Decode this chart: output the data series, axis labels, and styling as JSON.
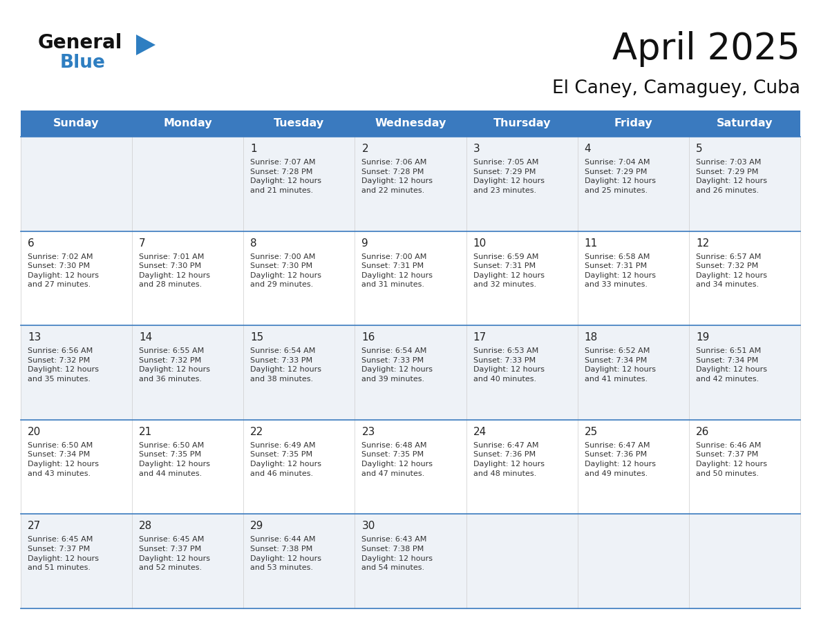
{
  "title": "April 2025",
  "subtitle": "El Caney, Camaguey, Cuba",
  "header_color": "#3a7abf",
  "header_text_color": "#ffffff",
  "row_bg_even": "#eef2f7",
  "row_bg_odd": "#ffffff",
  "separator_color": "#3a7abf",
  "cell_line_color": "#cccccc",
  "text_color": "#222222",
  "info_text_color": "#333333",
  "days_of_week": [
    "Sunday",
    "Monday",
    "Tuesday",
    "Wednesday",
    "Thursday",
    "Friday",
    "Saturday"
  ],
  "weeks": [
    [
      {
        "day": "",
        "info": ""
      },
      {
        "day": "",
        "info": ""
      },
      {
        "day": "1",
        "info": "Sunrise: 7:07 AM\nSunset: 7:28 PM\nDaylight: 12 hours\nand 21 minutes."
      },
      {
        "day": "2",
        "info": "Sunrise: 7:06 AM\nSunset: 7:28 PM\nDaylight: 12 hours\nand 22 minutes."
      },
      {
        "day": "3",
        "info": "Sunrise: 7:05 AM\nSunset: 7:29 PM\nDaylight: 12 hours\nand 23 minutes."
      },
      {
        "day": "4",
        "info": "Sunrise: 7:04 AM\nSunset: 7:29 PM\nDaylight: 12 hours\nand 25 minutes."
      },
      {
        "day": "5",
        "info": "Sunrise: 7:03 AM\nSunset: 7:29 PM\nDaylight: 12 hours\nand 26 minutes."
      }
    ],
    [
      {
        "day": "6",
        "info": "Sunrise: 7:02 AM\nSunset: 7:30 PM\nDaylight: 12 hours\nand 27 minutes."
      },
      {
        "day": "7",
        "info": "Sunrise: 7:01 AM\nSunset: 7:30 PM\nDaylight: 12 hours\nand 28 minutes."
      },
      {
        "day": "8",
        "info": "Sunrise: 7:00 AM\nSunset: 7:30 PM\nDaylight: 12 hours\nand 29 minutes."
      },
      {
        "day": "9",
        "info": "Sunrise: 7:00 AM\nSunset: 7:31 PM\nDaylight: 12 hours\nand 31 minutes."
      },
      {
        "day": "10",
        "info": "Sunrise: 6:59 AM\nSunset: 7:31 PM\nDaylight: 12 hours\nand 32 minutes."
      },
      {
        "day": "11",
        "info": "Sunrise: 6:58 AM\nSunset: 7:31 PM\nDaylight: 12 hours\nand 33 minutes."
      },
      {
        "day": "12",
        "info": "Sunrise: 6:57 AM\nSunset: 7:32 PM\nDaylight: 12 hours\nand 34 minutes."
      }
    ],
    [
      {
        "day": "13",
        "info": "Sunrise: 6:56 AM\nSunset: 7:32 PM\nDaylight: 12 hours\nand 35 minutes."
      },
      {
        "day": "14",
        "info": "Sunrise: 6:55 AM\nSunset: 7:32 PM\nDaylight: 12 hours\nand 36 minutes."
      },
      {
        "day": "15",
        "info": "Sunrise: 6:54 AM\nSunset: 7:33 PM\nDaylight: 12 hours\nand 38 minutes."
      },
      {
        "day": "16",
        "info": "Sunrise: 6:54 AM\nSunset: 7:33 PM\nDaylight: 12 hours\nand 39 minutes."
      },
      {
        "day": "17",
        "info": "Sunrise: 6:53 AM\nSunset: 7:33 PM\nDaylight: 12 hours\nand 40 minutes."
      },
      {
        "day": "18",
        "info": "Sunrise: 6:52 AM\nSunset: 7:34 PM\nDaylight: 12 hours\nand 41 minutes."
      },
      {
        "day": "19",
        "info": "Sunrise: 6:51 AM\nSunset: 7:34 PM\nDaylight: 12 hours\nand 42 minutes."
      }
    ],
    [
      {
        "day": "20",
        "info": "Sunrise: 6:50 AM\nSunset: 7:34 PM\nDaylight: 12 hours\nand 43 minutes."
      },
      {
        "day": "21",
        "info": "Sunrise: 6:50 AM\nSunset: 7:35 PM\nDaylight: 12 hours\nand 44 minutes."
      },
      {
        "day": "22",
        "info": "Sunrise: 6:49 AM\nSunset: 7:35 PM\nDaylight: 12 hours\nand 46 minutes."
      },
      {
        "day": "23",
        "info": "Sunrise: 6:48 AM\nSunset: 7:35 PM\nDaylight: 12 hours\nand 47 minutes."
      },
      {
        "day": "24",
        "info": "Sunrise: 6:47 AM\nSunset: 7:36 PM\nDaylight: 12 hours\nand 48 minutes."
      },
      {
        "day": "25",
        "info": "Sunrise: 6:47 AM\nSunset: 7:36 PM\nDaylight: 12 hours\nand 49 minutes."
      },
      {
        "day": "26",
        "info": "Sunrise: 6:46 AM\nSunset: 7:37 PM\nDaylight: 12 hours\nand 50 minutes."
      }
    ],
    [
      {
        "day": "27",
        "info": "Sunrise: 6:45 AM\nSunset: 7:37 PM\nDaylight: 12 hours\nand 51 minutes."
      },
      {
        "day": "28",
        "info": "Sunrise: 6:45 AM\nSunset: 7:37 PM\nDaylight: 12 hours\nand 52 minutes."
      },
      {
        "day": "29",
        "info": "Sunrise: 6:44 AM\nSunset: 7:38 PM\nDaylight: 12 hours\nand 53 minutes."
      },
      {
        "day": "30",
        "info": "Sunrise: 6:43 AM\nSunset: 7:38 PM\nDaylight: 12 hours\nand 54 minutes."
      },
      {
        "day": "",
        "info": ""
      },
      {
        "day": "",
        "info": ""
      },
      {
        "day": "",
        "info": ""
      }
    ]
  ],
  "logo_general_color": "#111111",
  "logo_blue_color": "#2e7ec1",
  "logo_triangle_color": "#2e7ec1"
}
